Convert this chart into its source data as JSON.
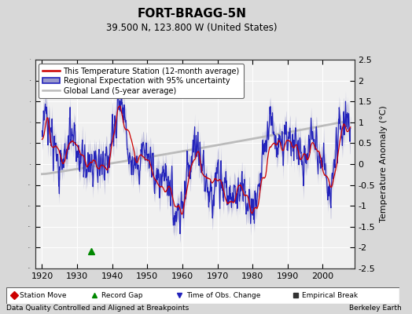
{
  "title": "FORT-BRAGG-5N",
  "subtitle": "39.500 N, 123.800 W (United States)",
  "ylabel": "Temperature Anomaly (°C)",
  "xlabel_bottom_left": "Data Quality Controlled and Aligned at Breakpoints",
  "xlabel_bottom_right": "Berkeley Earth",
  "ylim": [
    -2.5,
    2.5
  ],
  "xlim": [
    1918,
    2009
  ],
  "yticks": [
    -2.5,
    -2.0,
    -1.5,
    -1.0,
    -0.5,
    0.0,
    0.5,
    1.0,
    1.5,
    2.0,
    2.5
  ],
  "xticks": [
    1920,
    1930,
    1940,
    1950,
    1960,
    1970,
    1980,
    1990,
    2000
  ],
  "bg_color": "#d8d8d8",
  "plot_bg_color": "#f0f0f0",
  "grid_color": "#ffffff",
  "station_color": "#cc0000",
  "regional_color": "#2222bb",
  "regional_fill_color": "#9999cc",
  "global_color": "#bbbbbb",
  "legend_station": "This Temperature Station (12-month average)",
  "legend_regional": "Regional Expectation with 95% uncertainty",
  "legend_global": "Global Land (5-year average)",
  "marker_year_green": 1934,
  "seed": 123
}
